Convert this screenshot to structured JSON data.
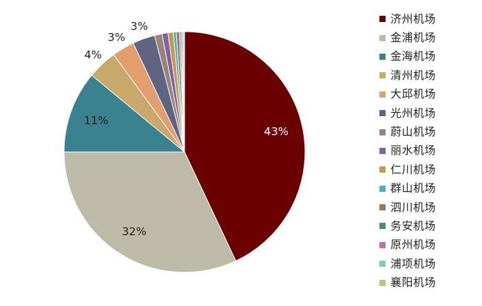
{
  "chart_data": {
    "type": "pie",
    "title": "",
    "start_angle_deg": 0,
    "direction": "clockwise",
    "legend_position": "right",
    "slices": [
      {
        "name": "济州机场",
        "value": 43,
        "label": "43%",
        "color": "#6b0000",
        "label_color": "#ffffff"
      },
      {
        "name": "金浦机场",
        "value": 32,
        "label": "32%",
        "color": "#bdbba8",
        "label_color": "#222222"
      },
      {
        "name": "金海机场",
        "value": 11,
        "label": "11%",
        "color": "#3b8291",
        "label_color": "#222222"
      },
      {
        "name": "清州机场",
        "value": 4,
        "label": "4%",
        "color": "#c9a86b",
        "label_color": "#222222"
      },
      {
        "name": "大邱机场",
        "value": 3,
        "label": "3%",
        "color": "#e39e6e",
        "label_color": "#222222"
      },
      {
        "name": "光州机场",
        "value": 3,
        "label": "3%",
        "color": "#5e6482",
        "label_color": "#222222"
      },
      {
        "name": "蔚山机场",
        "value": 1,
        "label": "",
        "color": "#9a8573",
        "label_color": "#222222"
      },
      {
        "name": "丽水机场",
        "value": 0.8,
        "label": "",
        "color": "#7d63a6",
        "label_color": "#222222"
      },
      {
        "name": "仁川机场",
        "value": 0.7,
        "label": "",
        "color": "#c79a48",
        "label_color": "#222222"
      },
      {
        "name": "群山机场",
        "value": 0.4,
        "label": "",
        "color": "#48b1c9",
        "label_color": "#222222"
      },
      {
        "name": "泗川机场",
        "value": 0.4,
        "label": "",
        "color": "#a0765a",
        "label_color": "#222222"
      },
      {
        "name": "务安机场",
        "value": 0.2,
        "label": "",
        "color": "#4b8c74",
        "label_color": "#222222"
      },
      {
        "name": "原州机场",
        "value": 0.2,
        "label": "",
        "color": "#bf6fb0",
        "label_color": "#222222"
      },
      {
        "name": "浦项机场",
        "value": 0.2,
        "label": "",
        "color": "#7ecdbf",
        "label_color": "#222222"
      },
      {
        "name": "襄阳机场",
        "value": 0.1,
        "label": "",
        "color": "#a6cf7e",
        "label_color": "#222222"
      }
    ]
  }
}
